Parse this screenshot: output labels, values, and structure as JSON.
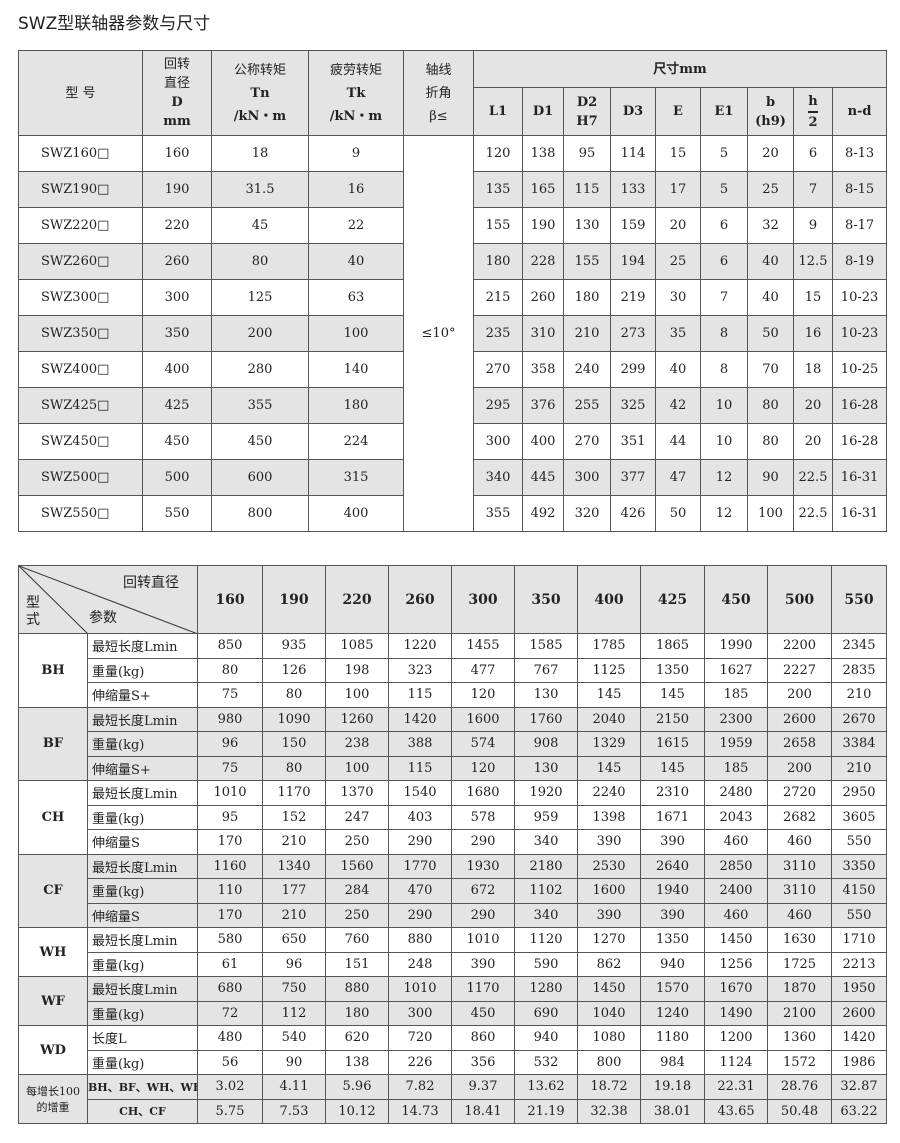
{
  "title": "SWZ型联轴器参数与尺寸",
  "table1": {
    "headers": {
      "model": "型  号",
      "diam": [
        "回转",
        "直径",
        "D",
        "mm"
      ],
      "tn": [
        "公称转矩",
        "Tn",
        "/kN・m"
      ],
      "tk": [
        "疲劳转矩",
        "Tk",
        "/kN・m"
      ],
      "angle": [
        "轴线",
        "折角",
        "β≤"
      ],
      "dims": "尺寸mm",
      "dim_cols": [
        "L1",
        "D1",
        "D2\nH7",
        "D3",
        "E",
        "E1",
        "b\n(h9)",
        "h\n2",
        "n-d"
      ]
    },
    "angle_value": "≤10°",
    "rows": [
      [
        "SWZ160□",
        "160",
        "18",
        "9",
        "120",
        "138",
        "95",
        "114",
        "15",
        "5",
        "20",
        "6",
        "8-13"
      ],
      [
        "SWZ190□",
        "190",
        "31.5",
        "16",
        "135",
        "165",
        "115",
        "133",
        "17",
        "5",
        "25",
        "7",
        "8-15"
      ],
      [
        "SWZ220□",
        "220",
        "45",
        "22",
        "155",
        "190",
        "130",
        "159",
        "20",
        "6",
        "32",
        "9",
        "8-17"
      ],
      [
        "SWZ260□",
        "260",
        "80",
        "40",
        "180",
        "228",
        "155",
        "194",
        "25",
        "6",
        "40",
        "12.5",
        "8-19"
      ],
      [
        "SWZ300□",
        "300",
        "125",
        "63",
        "215",
        "260",
        "180",
        "219",
        "30",
        "7",
        "40",
        "15",
        "10-23"
      ],
      [
        "SWZ350□",
        "350",
        "200",
        "100",
        "235",
        "310",
        "210",
        "273",
        "35",
        "8",
        "50",
        "16",
        "10-23"
      ],
      [
        "SWZ400□",
        "400",
        "280",
        "140",
        "270",
        "358",
        "240",
        "299",
        "40",
        "8",
        "70",
        "18",
        "10-25"
      ],
      [
        "SWZ425□",
        "425",
        "355",
        "180",
        "295",
        "376",
        "255",
        "325",
        "42",
        "10",
        "80",
        "20",
        "16-28"
      ],
      [
        "SWZ450□",
        "450",
        "450",
        "224",
        "300",
        "400",
        "270",
        "351",
        "44",
        "10",
        "80",
        "20",
        "16-28"
      ],
      [
        "SWZ500□",
        "500",
        "600",
        "315",
        "340",
        "445",
        "300",
        "377",
        "47",
        "12",
        "90",
        "22.5",
        "16-31"
      ],
      [
        "SWZ550□",
        "550",
        "800",
        "400",
        "355",
        "492",
        "320",
        "426",
        "50",
        "12",
        "100",
        "22.5",
        "16-31"
      ]
    ]
  },
  "table2": {
    "corner": {
      "top": "回转直径",
      "middle": "参数",
      "left": "型式"
    },
    "diameters": [
      "160",
      "190",
      "220",
      "260",
      "300",
      "350",
      "400",
      "425",
      "450",
      "500",
      "550"
    ],
    "groups": [
      {
        "type": "BH",
        "rows": [
          [
            "最短长度Lmin",
            "850",
            "935",
            "1085",
            "1220",
            "1455",
            "1585",
            "1785",
            "1865",
            "1990",
            "2200",
            "2345"
          ],
          [
            "重量(kg)",
            "80",
            "126",
            "198",
            "323",
            "477",
            "767",
            "1125",
            "1350",
            "1627",
            "2227",
            "2835"
          ],
          [
            "伸缩量S+",
            "75",
            "80",
            "100",
            "115",
            "120",
            "130",
            "145",
            "145",
            "185",
            "200",
            "210"
          ]
        ]
      },
      {
        "type": "BF",
        "rows": [
          [
            "最短长度Lmin",
            "980",
            "1090",
            "1260",
            "1420",
            "1600",
            "1760",
            "2040",
            "2150",
            "2300",
            "2600",
            "2670"
          ],
          [
            "重量(kg)",
            "96",
            "150",
            "238",
            "388",
            "574",
            "908",
            "1329",
            "1615",
            "1959",
            "2658",
            "3384"
          ],
          [
            "伸缩量S+",
            "75",
            "80",
            "100",
            "115",
            "120",
            "130",
            "145",
            "145",
            "185",
            "200",
            "210"
          ]
        ]
      },
      {
        "type": "CH",
        "rows": [
          [
            "最短长度Lmin",
            "1010",
            "1170",
            "1370",
            "1540",
            "1680",
            "1920",
            "2240",
            "2310",
            "2480",
            "2720",
            "2950"
          ],
          [
            "重量(kg)",
            "95",
            "152",
            "247",
            "403",
            "578",
            "959",
            "1398",
            "1671",
            "2043",
            "2682",
            "3605"
          ],
          [
            "伸缩量S",
            "170",
            "210",
            "250",
            "290",
            "290",
            "340",
            "390",
            "390",
            "460",
            "460",
            "550"
          ]
        ]
      },
      {
        "type": "CF",
        "rows": [
          [
            "最短长度Lmin",
            "1160",
            "1340",
            "1560",
            "1770",
            "1930",
            "2180",
            "2530",
            "2640",
            "2850",
            "3110",
            "3350"
          ],
          [
            "重量(kg)",
            "110",
            "177",
            "284",
            "470",
            "672",
            "1102",
            "1600",
            "1940",
            "2400",
            "3110",
            "4150"
          ],
          [
            "伸缩量S",
            "170",
            "210",
            "250",
            "290",
            "290",
            "340",
            "390",
            "390",
            "460",
            "460",
            "550"
          ]
        ]
      },
      {
        "type": "WH",
        "rows": [
          [
            "最短长度Lmin",
            "580",
            "650",
            "760",
            "880",
            "1010",
            "1120",
            "1270",
            "1350",
            "1450",
            "1630",
            "1710"
          ],
          [
            "重量(kg)",
            "61",
            "96",
            "151",
            "248",
            "390",
            "590",
            "862",
            "940",
            "1256",
            "1725",
            "2213"
          ]
        ]
      },
      {
        "type": "WF",
        "rows": [
          [
            "最短长度Lmin",
            "680",
            "750",
            "880",
            "1010",
            "1170",
            "1280",
            "1450",
            "1570",
            "1670",
            "1870",
            "1950"
          ],
          [
            "重量(kg)",
            "72",
            "112",
            "180",
            "300",
            "450",
            "690",
            "1040",
            "1240",
            "1490",
            "2100",
            "2600"
          ]
        ]
      },
      {
        "type": "WD",
        "rows": [
          [
            "长度L",
            "480",
            "540",
            "620",
            "720",
            "860",
            "940",
            "1080",
            "1180",
            "1200",
            "1360",
            "1420"
          ],
          [
            "重量(kg)",
            "56",
            "90",
            "138",
            "226",
            "356",
            "532",
            "800",
            "984",
            "1124",
            "1572",
            "1986"
          ]
        ]
      },
      {
        "type": "每增长100的增重",
        "rows": [
          [
            "BH、BF、WH、WF",
            "3.02",
            "4.11",
            "5.96",
            "7.82",
            "9.37",
            "13.62",
            "18.72",
            "19.18",
            "22.31",
            "28.76",
            "32.87"
          ],
          [
            "CH、CF",
            "5.75",
            "7.53",
            "10.12",
            "14.73",
            "18.41",
            "21.19",
            "32.38",
            "38.01",
            "43.65",
            "50.48",
            "63.22"
          ]
        ]
      }
    ]
  }
}
